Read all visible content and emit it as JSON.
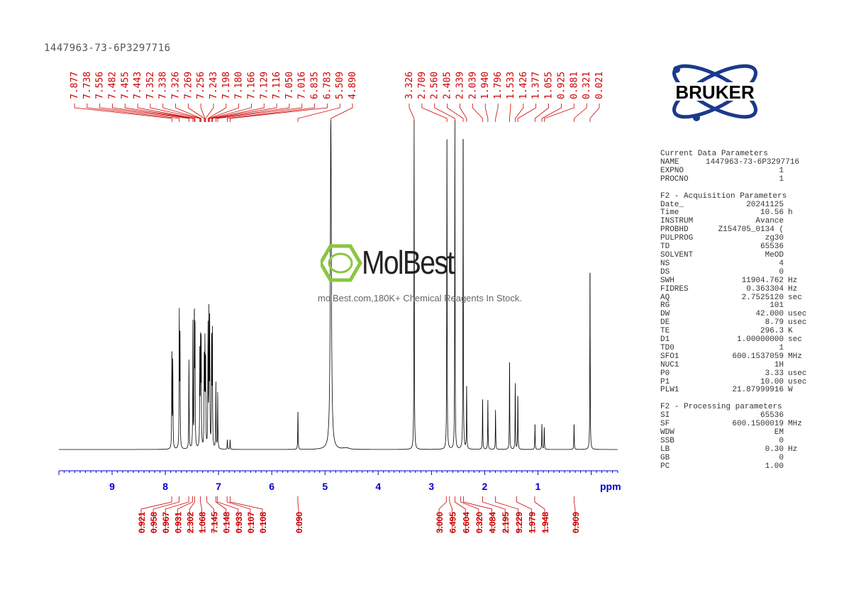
{
  "title": "1447963-73-6P3297716",
  "logo": {
    "text": "BRUKER",
    "color": "#1a3a8c"
  },
  "watermark": {
    "name": "MolBest",
    "subtitle": "molBest.com,180K+ Chemical Reagents In Stock.",
    "color": "#8cc63f"
  },
  "parameters": {
    "sections": [
      {
        "heading": "Current Data Parameters",
        "rows": [
          [
            "NAME",
            "1447963-73-6P3297716",
            ""
          ],
          [
            "EXPNO",
            "1",
            ""
          ],
          [
            "PROCNO",
            "1",
            ""
          ]
        ]
      },
      {
        "heading": "F2 - Acquisition Parameters",
        "rows": [
          [
            "Date_",
            "20241125",
            ""
          ],
          [
            "Time",
            "10.56",
            "h"
          ],
          [
            "INSTRUM",
            "Avance",
            ""
          ],
          [
            "PROBHD",
            "Z154705_0134 (",
            ""
          ],
          [
            "PULPROG",
            "zg30",
            ""
          ],
          [
            "TD",
            "65536",
            ""
          ],
          [
            "SOLVENT",
            "MeOD",
            ""
          ],
          [
            "NS",
            "4",
            ""
          ],
          [
            "DS",
            "0",
            ""
          ],
          [
            "SWH",
            "11904.762",
            "Hz"
          ],
          [
            "FIDRES",
            "0.363304",
            "Hz"
          ],
          [
            "AQ",
            "2.7525120",
            "sec"
          ],
          [
            "RG",
            "101",
            ""
          ],
          [
            "DW",
            "42.000",
            "usec"
          ],
          [
            "DE",
            "8.79",
            "usec"
          ],
          [
            "TE",
            "296.3",
            "K"
          ],
          [
            "D1",
            "1.00000000",
            "sec"
          ],
          [
            "TD0",
            "1",
            ""
          ],
          [
            "SFO1",
            "600.1537059",
            "MHz"
          ],
          [
            "NUC1",
            "1H",
            ""
          ],
          [
            "P0",
            "3.33",
            "usec"
          ],
          [
            "P1",
            "10.00",
            "usec"
          ],
          [
            "PLW1",
            "21.87999916",
            "W"
          ]
        ]
      },
      {
        "heading": "F2 - Processing parameters",
        "rows": [
          [
            "SI",
            "65536",
            ""
          ],
          [
            "SF",
            "600.1500019",
            "MHz"
          ],
          [
            "WDW",
            "EM",
            ""
          ],
          [
            "SSB",
            "0",
            ""
          ],
          [
            "LB",
            "0.30",
            "Hz"
          ],
          [
            "GB",
            "0",
            ""
          ],
          [
            "PC",
            "1.00",
            ""
          ]
        ]
      }
    ]
  },
  "chart_data": {
    "type": "line",
    "xlabel": "ppm",
    "xlim": [
      10.0,
      -0.5
    ],
    "x_reversed": true,
    "xticks": [
      "9",
      "8",
      "7",
      "6",
      "5",
      "4",
      "3",
      "2",
      "1"
    ],
    "colors": {
      "spectrum": "#000000",
      "annotations": "#cc0000",
      "axis": "#0000cc"
    },
    "peak_label_groups": [
      [
        "7.877",
        "7.738",
        "7.556",
        "7.482",
        "7.455",
        "7.443",
        "7.352",
        "7.338",
        "7.326",
        "7.269",
        "7.256",
        "7.243",
        "7.198",
        "7.180",
        "7.166",
        "7.129",
        "7.116",
        "7.050",
        "7.016",
        "6.835",
        "6.783",
        "5.509",
        "4.890"
      ],
      [
        "3.326",
        "2.709",
        "2.560",
        "2.405",
        "2.339",
        "2.039",
        "1.940",
        "1.796",
        "1.533",
        "1.426",
        "1.377",
        "1.055",
        "0.925",
        "0.881",
        "0.321",
        "0.021"
      ]
    ],
    "peaks": [
      {
        "ppm": 7.877,
        "height": 0.3
      },
      {
        "ppm": 7.86,
        "height": 0.26
      },
      {
        "ppm": 7.738,
        "height": 0.4
      },
      {
        "ppm": 7.725,
        "height": 0.34
      },
      {
        "ppm": 7.556,
        "height": 0.27
      },
      {
        "ppm": 7.482,
        "height": 0.38
      },
      {
        "ppm": 7.455,
        "height": 0.4
      },
      {
        "ppm": 7.443,
        "height": 0.36
      },
      {
        "ppm": 7.352,
        "height": 0.28
      },
      {
        "ppm": 7.338,
        "height": 0.3
      },
      {
        "ppm": 7.326,
        "height": 0.31
      },
      {
        "ppm": 7.269,
        "height": 0.27
      },
      {
        "ppm": 7.256,
        "height": 0.3
      },
      {
        "ppm": 7.243,
        "height": 0.26
      },
      {
        "ppm": 7.198,
        "height": 0.36
      },
      {
        "ppm": 7.18,
        "height": 0.39
      },
      {
        "ppm": 7.166,
        "height": 0.37
      },
      {
        "ppm": 7.129,
        "height": 0.33
      },
      {
        "ppm": 7.116,
        "height": 0.34
      },
      {
        "ppm": 7.05,
        "height": 0.2
      },
      {
        "ppm": 7.016,
        "height": 0.17
      },
      {
        "ppm": 6.835,
        "height": 0.03
      },
      {
        "ppm": 6.783,
        "height": 0.03
      },
      {
        "ppm": 5.509,
        "height": 0.12
      },
      {
        "ppm": 4.89,
        "height": 1.0
      },
      {
        "ppm": 3.326,
        "height": 1.0
      },
      {
        "ppm": 2.709,
        "height": 1.0
      },
      {
        "ppm": 2.56,
        "height": 1.0
      },
      {
        "ppm": 2.405,
        "height": 1.0
      },
      {
        "ppm": 2.339,
        "height": 0.2
      },
      {
        "ppm": 2.039,
        "height": 0.16
      },
      {
        "ppm": 1.94,
        "height": 0.15
      },
      {
        "ppm": 1.796,
        "height": 0.12
      },
      {
        "ppm": 1.533,
        "height": 0.28
      },
      {
        "ppm": 1.426,
        "height": 0.2
      },
      {
        "ppm": 1.377,
        "height": 0.17
      },
      {
        "ppm": 1.055,
        "height": 0.08
      },
      {
        "ppm": 0.925,
        "height": 0.08
      },
      {
        "ppm": 0.881,
        "height": 0.07
      },
      {
        "ppm": 0.321,
        "height": 0.08
      },
      {
        "ppm": 0.021,
        "height": 0.57
      }
    ],
    "integral_groups": [
      [
        {
          "value": "0.921",
          "ppm": 7.88
        },
        {
          "value": "0.958",
          "ppm": 7.74
        },
        {
          "value": "0.967",
          "ppm": 7.56
        },
        {
          "value": "0.931",
          "ppm": 7.49
        },
        {
          "value": "2.302",
          "ppm": 7.45
        },
        {
          "value": "1.068",
          "ppm": 7.34
        },
        {
          "value": "7.145",
          "ppm": 7.22
        },
        {
          "value": "0.148",
          "ppm": 7.05
        },
        {
          "value": "0.933",
          "ppm": 7.02
        },
        {
          "value": "0.107",
          "ppm": 6.84
        },
        {
          "value": "0.108",
          "ppm": 6.78
        }
      ],
      [
        {
          "value": "0.090",
          "ppm": 5.51
        }
      ],
      [
        {
          "value": "3.000",
          "ppm": 2.72
        },
        {
          "value": "6.495",
          "ppm": 2.66
        },
        {
          "value": "6.604",
          "ppm": 2.56
        },
        {
          "value": "0.320",
          "ppm": 2.45
        },
        {
          "value": "4.084",
          "ppm": 2.4
        },
        {
          "value": "2.195",
          "ppm": 2.04
        },
        {
          "value": "9.229",
          "ppm": 1.8
        },
        {
          "value": "1.979",
          "ppm": 1.4
        },
        {
          "value": "1.948",
          "ppm": 1.06
        }
      ],
      [
        {
          "value": "0.909",
          "ppm": 0.32
        }
      ]
    ]
  }
}
